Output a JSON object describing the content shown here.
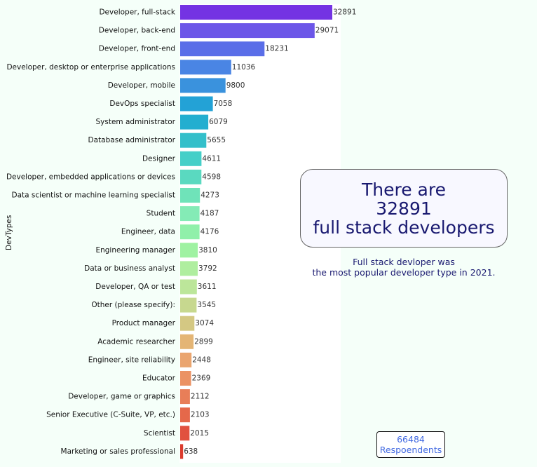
{
  "chart_data": {
    "type": "bar",
    "orientation": "horizontal",
    "ylabel": "DevTypes",
    "xlabel": "",
    "categories": [
      "Developer, full-stack",
      "Developer, back-end",
      "Developer, front-end",
      "Developer, desktop or enterprise applications",
      "Developer, mobile",
      "DevOps specialist",
      "System administrator",
      "Database administrator",
      "Designer",
      "Developer, embedded applications or devices",
      "Data scientist or machine learning specialist",
      "Student",
      "Engineer, data",
      "Engineering manager",
      "Data or business analyst",
      "Developer, QA or test",
      "Other (please specify):",
      "Product manager",
      "Academic researcher",
      "Engineer, site reliability",
      "Educator",
      "Developer, game or graphics",
      "Senior Executive (C-Suite, VP, etc.)",
      "Scientist",
      "Marketing or sales professional"
    ],
    "values": [
      32891,
      29071,
      18231,
      11036,
      9800,
      7058,
      6079,
      5655,
      4611,
      4598,
      4273,
      4187,
      4176,
      3810,
      3792,
      3611,
      3545,
      3074,
      2899,
      2448,
      2369,
      2112,
      2103,
      2015,
      638
    ],
    "colors": [
      "#7433e3",
      "#6c56e8",
      "#5a6ee8",
      "#4a85e4",
      "#3a92dd",
      "#23a2d6",
      "#23aed0",
      "#33bfca",
      "#45cfc8",
      "#5ad9c0",
      "#6fe3b9",
      "#84ebb6",
      "#90f0aa",
      "#9ff2a2",
      "#afee9f",
      "#bce69a",
      "#c7d88f",
      "#d4c883",
      "#e4b575",
      "#eaa56f",
      "#eb9263",
      "#e87e58",
      "#e5684a",
      "#e1513f",
      "#db3b2d"
    ],
    "grid": false
  },
  "callout": {
    "line1": "There are",
    "line2": "32891",
    "line3": "full stack developers"
  },
  "subtitle": {
    "line1": "Full stack devloper was",
    "line2": "the most popular developer type in 2021."
  },
  "respondents": {
    "count": "66484",
    "label": "Respoendents"
  }
}
